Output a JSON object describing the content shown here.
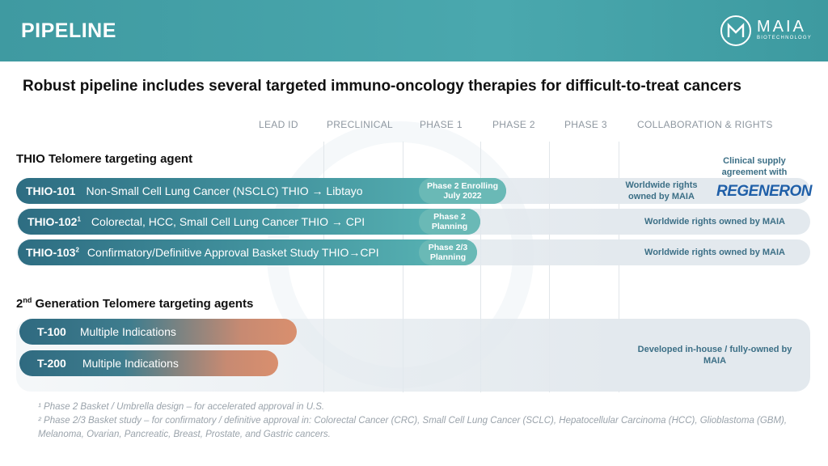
{
  "header": {
    "title": "PIPELINE"
  },
  "logo": {
    "name": "MAIA",
    "sub": "BIOTECHNOLOGY"
  },
  "subtitle": "Robust pipeline includes several targeted immuno-oncology therapies for difficult-to-treat cancers",
  "columns": [
    "LEAD ID",
    "PRECLINICAL",
    "PHASE 1",
    "PHASE 2",
    "PHASE 3",
    "COLLABORATION & RIGHTS"
  ],
  "section1": {
    "title": "THIO Telomere targeting agent"
  },
  "section2": {
    "title_prefix": "2",
    "title_sup": "nd",
    "title_rest": " Generation  Telomere targeting agents"
  },
  "programs": [
    {
      "code": "THIO-101",
      "sup": "",
      "desc": "Non-Small Cell Lung Cancer (NSCLC)  THIO → Libtayo",
      "stage_line1": "Phase 2 Enrolling",
      "stage_line2": "July 2022",
      "rights_line1": "Worldwide rights",
      "rights_line2": "owned by MAIA"
    },
    {
      "code": "THIO-102",
      "sup": "1",
      "desc": "Colorectal, HCC, Small Cell Lung Cancer  THIO → CPI",
      "stage_line1": "Phase 2",
      "stage_line2": "Planning",
      "rights_line1": "Worldwide rights owned by MAIA",
      "rights_line2": ""
    },
    {
      "code": "THIO-103",
      "sup": "2",
      "desc": "Confirmatory/Definitive Approval Basket Study THIO→CPI",
      "stage_line1": "Phase 2/3",
      "stage_line2": "Planning",
      "rights_line1": "Worldwide rights owned by MAIA",
      "rights_line2": ""
    }
  ],
  "next_gen": [
    {
      "code": "T-100",
      "desc": "Multiple Indications"
    },
    {
      "code": "T-200",
      "desc": "Multiple Indications"
    }
  ],
  "next_gen_rights": {
    "line1": "Developed in-house / fully-owned by",
    "line2": "MAIA"
  },
  "partner": {
    "line1": "Clinical supply",
    "line2": "agreement with",
    "brand": "REGENERON"
  },
  "footnotes": [
    "¹ Phase 2 Basket / Umbrella design – for accelerated approval in U.S.",
    "² Phase 2/3 Basket study – for confirmatory / definitive approval in: Colorectal Cancer (CRC), Small Cell Lung Cancer (SCLC), Hepatocellular Carcinoma (HCC), Glioblastoma (GBM), Melanoma, Ovarian, Pancreatic, Breast, Prostate, and Gastric cancers."
  ],
  "colors": {
    "header": "#4aa8ae",
    "bar_teal": "#3f8d9a",
    "bar_orange": "#d98f6e",
    "rights_text": "#3c6f86",
    "regeneron": "#1f5fa8"
  }
}
